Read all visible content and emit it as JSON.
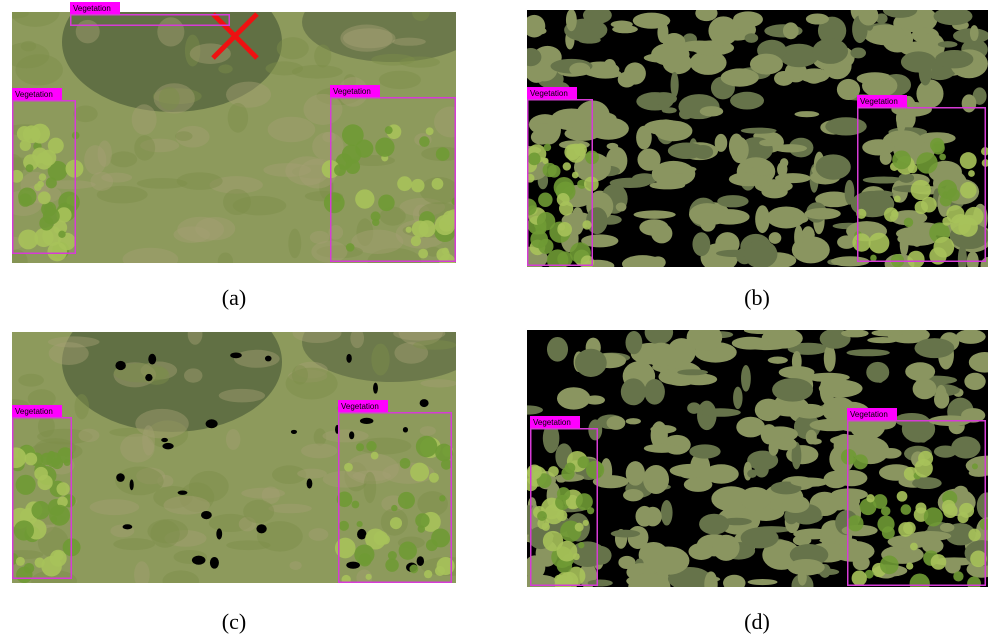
{
  "panels": [
    {
      "caption": "(a)",
      "boxes": [
        {
          "label": "Vegetation"
        },
        {
          "label": "Vegetation"
        },
        {
          "label": "Vegetation"
        }
      ]
    },
    {
      "caption": "(b)",
      "boxes": [
        {
          "label": "Vegetation"
        },
        {
          "label": "Vegetation"
        }
      ]
    },
    {
      "caption": "(c)",
      "boxes": [
        {
          "label": "Vegetation"
        },
        {
          "label": "Vegetation"
        }
      ]
    },
    {
      "caption": "(d)",
      "boxes": [
        {
          "label": "Vegetation"
        },
        {
          "label": "Vegetation"
        }
      ]
    }
  ]
}
